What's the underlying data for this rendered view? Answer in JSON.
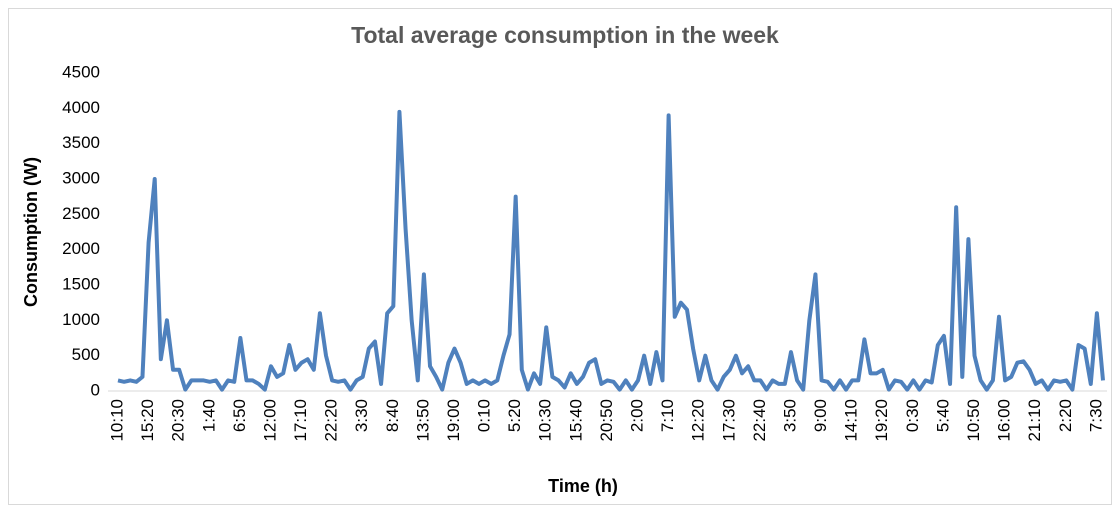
{
  "chart_data": {
    "type": "line",
    "title": "Total average consumption in the week",
    "x_label": "Time (h)",
    "y_label": "Consumption (W)",
    "color": "#4f81bd",
    "ylim": [
      0,
      4500
    ],
    "yticks": [
      0,
      500,
      1000,
      1500,
      2000,
      2500,
      3000,
      3500,
      4000,
      4500
    ],
    "categories": [
      "10:10",
      null,
      null,
      null,
      null,
      "15:20",
      null,
      null,
      null,
      null,
      "20:30",
      null,
      null,
      null,
      null,
      "1:40",
      null,
      null,
      null,
      null,
      "6:50",
      null,
      null,
      null,
      null,
      "12:00",
      null,
      null,
      null,
      null,
      "17:10",
      null,
      null,
      null,
      null,
      "22:20",
      null,
      null,
      null,
      null,
      "3:30",
      null,
      null,
      null,
      null,
      "8:40",
      null,
      null,
      null,
      null,
      "13:50",
      null,
      null,
      null,
      null,
      "19:00",
      null,
      null,
      null,
      null,
      "0:10",
      null,
      null,
      null,
      null,
      "5:20",
      null,
      null,
      null,
      null,
      "10:30",
      null,
      null,
      null,
      null,
      "15:40",
      null,
      null,
      null,
      null,
      "20:50",
      null,
      null,
      null,
      null,
      "2:00",
      null,
      null,
      null,
      null,
      "7:10",
      null,
      null,
      null,
      null,
      "12:20",
      null,
      null,
      null,
      null,
      "17:30",
      null,
      null,
      null,
      null,
      "22:40",
      null,
      null,
      null,
      null,
      "3:50",
      null,
      null,
      null,
      null,
      "9:00",
      null,
      null,
      null,
      null,
      "14:10",
      null,
      null,
      null,
      null,
      "19:20",
      null,
      null,
      null,
      null,
      "0:30",
      null,
      null,
      null,
      null,
      "5:40",
      null,
      null,
      null,
      null,
      "10:50",
      null,
      null,
      null,
      null,
      "16:00",
      null,
      null,
      null,
      null,
      "21:10",
      null,
      null,
      null,
      null,
      "2:20",
      null,
      null,
      null,
      null,
      "7:30",
      null
    ],
    "values": [
      150,
      130,
      150,
      130,
      200,
      2100,
      3000,
      450,
      1000,
      300,
      300,
      20,
      150,
      150,
      150,
      130,
      150,
      20,
      150,
      130,
      750,
      150,
      150,
      100,
      20,
      350,
      200,
      250,
      650,
      300,
      400,
      450,
      300,
      1100,
      500,
      150,
      130,
      150,
      20,
      150,
      200,
      600,
      700,
      100,
      1100,
      1200,
      3950,
      2300,
      1000,
      150,
      1650,
      350,
      200,
      20,
      400,
      600,
      400,
      100,
      150,
      100,
      150,
      100,
      150,
      500,
      800,
      2750,
      300,
      20,
      250,
      100,
      900,
      200,
      150,
      50,
      250,
      100,
      200,
      400,
      450,
      100,
      150,
      130,
      20,
      150,
      20,
      150,
      500,
      100,
      550,
      150,
      3900,
      1050,
      1250,
      1150,
      600,
      150,
      500,
      150,
      20,
      200,
      300,
      500,
      250,
      350,
      150,
      150,
      20,
      150,
      100,
      100,
      550,
      150,
      20,
      1000,
      1650,
      150,
      130,
      20,
      150,
      20,
      150,
      150,
      730,
      250,
      250,
      300,
      20,
      150,
      130,
      20,
      150,
      20,
      150,
      120,
      650,
      780,
      100,
      2600,
      200,
      2150,
      500,
      150,
      20,
      150,
      1050,
      150,
      200,
      400,
      420,
      300,
      100,
      150,
      20,
      150,
      130,
      150,
      20,
      650,
      600,
      100,
      1100,
      150
    ]
  }
}
